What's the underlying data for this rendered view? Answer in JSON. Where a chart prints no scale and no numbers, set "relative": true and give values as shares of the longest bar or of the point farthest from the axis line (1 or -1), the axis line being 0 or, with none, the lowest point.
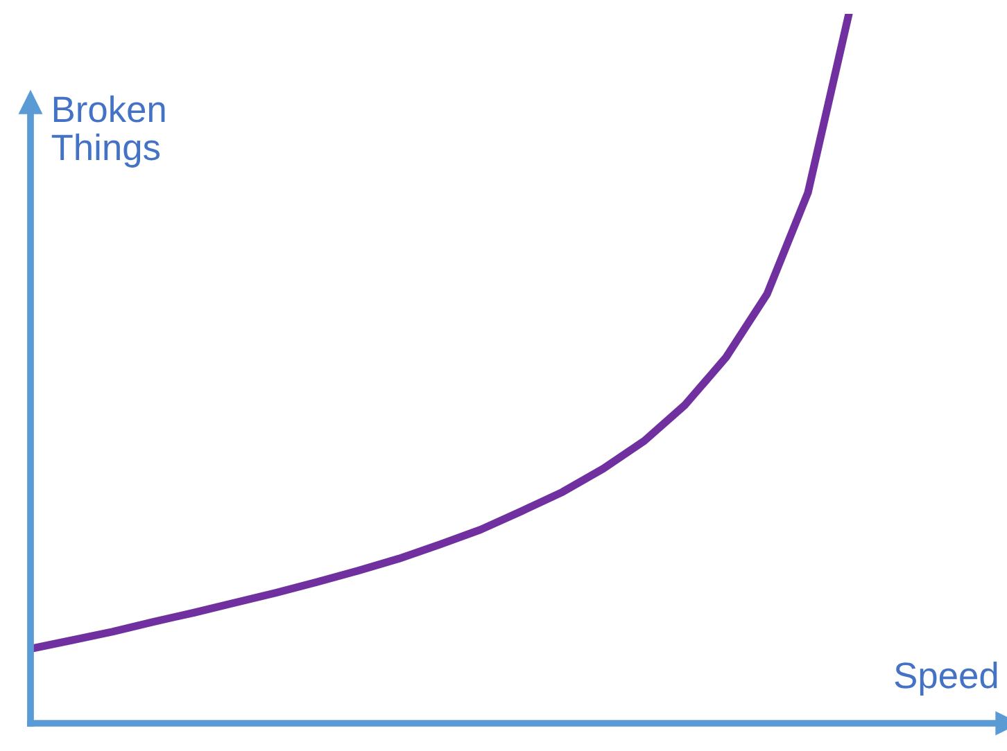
{
  "chart_data": {
    "type": "line",
    "relative": true,
    "xlabel": "Speed",
    "ylabel": "Broken\nThings",
    "categories": [
      null,
      null,
      null,
      null,
      null,
      null,
      null,
      null,
      null,
      null,
      null,
      null,
      null,
      null,
      null,
      null,
      null,
      null,
      null,
      null,
      null,
      null,
      null,
      null,
      null
    ],
    "series": [
      {
        "color": "#7030a0",
        "values": [
          0.105,
          0.117,
          0.129,
          0.143,
          0.156,
          0.17,
          0.184,
          0.199,
          0.215,
          0.232,
          0.252,
          0.273,
          0.299,
          0.326,
          0.359,
          0.398,
          0.449,
          0.516,
          0.605,
          0.748,
          1,
          null,
          null,
          null,
          null
        ]
      }
    ],
    "legend": false,
    "marker": "none",
    "line_style": "solid"
  }
}
